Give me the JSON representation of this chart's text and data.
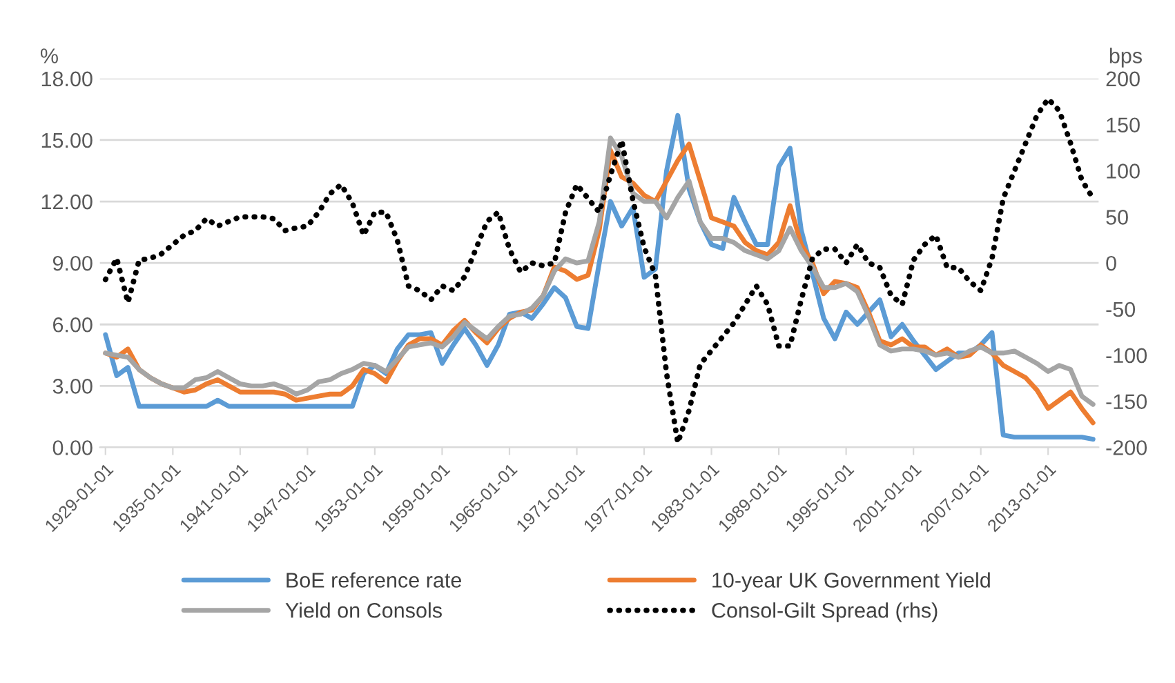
{
  "chart_data": {
    "type": "line",
    "ylabel": "%",
    "y2label": "bps",
    "categories": [
      "1929-01-01",
      null,
      null,
      null,
      null,
      null,
      "1935-01-01",
      null,
      null,
      null,
      null,
      null,
      "1941-01-01",
      null,
      null,
      null,
      null,
      null,
      "1947-01-01",
      null,
      null,
      null,
      null,
      null,
      "1953-01-01",
      null,
      null,
      null,
      null,
      null,
      "1959-01-01",
      null,
      null,
      null,
      null,
      null,
      "1965-01-01",
      null,
      null,
      null,
      null,
      null,
      "1971-01-01",
      null,
      null,
      null,
      null,
      null,
      "1977-01-01",
      null,
      null,
      null,
      null,
      null,
      "1983-01-01",
      null,
      null,
      null,
      null,
      null,
      "1989-01-01",
      null,
      null,
      null,
      null,
      null,
      "1995-01-01",
      null,
      null,
      null,
      null,
      null,
      "2001-01-01",
      null,
      null,
      null,
      null,
      null,
      "2007-01-01",
      null,
      null,
      null,
      null,
      null,
      "2013-01-01",
      null,
      null,
      null,
      null
    ],
    "ylim": [
      0,
      18
    ],
    "yticks": [
      {
        "value": 0,
        "label": "0.00"
      },
      {
        "value": 3,
        "label": "3.00"
      },
      {
        "value": 6,
        "label": "6.00"
      },
      {
        "value": 9,
        "label": "9.00"
      },
      {
        "value": 12,
        "label": "12.00"
      },
      {
        "value": 15,
        "label": "15.00"
      },
      {
        "value": 18,
        "label": "18.00"
      }
    ],
    "y2lim": [
      -200,
      200
    ],
    "y2ticks": [
      -200,
      -150,
      -100,
      -50,
      0,
      50,
      100,
      150,
      200
    ],
    "grid": "y",
    "legend": "bottom",
    "series": [
      {
        "name": "BoE reference rate",
        "color": "#5b9bd5",
        "line_style": "solid",
        "values": [
          5.5,
          3.5,
          3.9,
          2.0,
          2.0,
          2.0,
          2.0,
          2.0,
          2.0,
          2.0,
          2.3,
          2.0,
          2.0,
          2.0,
          2.0,
          2.0,
          2.0,
          2.0,
          2.0,
          2.0,
          2.0,
          2.0,
          2.0,
          3.6,
          4.0,
          3.6,
          4.8,
          5.5,
          5.5,
          5.6,
          4.1,
          5.0,
          5.8,
          5.0,
          4.0,
          5.0,
          6.5,
          6.6,
          6.3,
          7.0,
          7.8,
          7.3,
          5.9,
          5.8,
          9.0,
          12.0,
          10.8,
          11.7,
          8.3,
          8.7,
          13.5,
          16.2,
          12.6,
          11.0,
          9.9,
          9.7,
          12.2,
          11.0,
          9.9,
          9.9,
          13.7,
          14.6,
          10.6,
          8.5,
          6.3,
          5.3,
          6.6,
          6.0,
          6.6,
          7.2,
          5.4,
          6.0,
          5.2,
          4.5,
          3.8,
          4.2,
          4.6,
          4.6,
          5.0,
          5.6,
          0.6,
          0.5,
          0.5,
          0.5,
          0.5,
          0.5,
          0.5,
          0.5,
          0.4
        ]
      },
      {
        "name": "10-year UK Government Yield",
        "color": "#ed7d31",
        "line_style": "solid",
        "values": [
          4.6,
          4.4,
          4.8,
          3.8,
          3.4,
          3.1,
          2.9,
          2.7,
          2.8,
          3.1,
          3.3,
          3.0,
          2.7,
          2.7,
          2.7,
          2.7,
          2.6,
          2.3,
          2.4,
          2.5,
          2.6,
          2.6,
          3.0,
          3.8,
          3.6,
          3.2,
          4.2,
          5.0,
          5.3,
          5.3,
          5.0,
          5.7,
          6.2,
          5.6,
          5.1,
          5.8,
          6.3,
          6.6,
          6.7,
          7.4,
          8.8,
          8.6,
          8.2,
          8.4,
          10.6,
          14.5,
          13.2,
          12.9,
          12.3,
          12.0,
          13.0,
          14.0,
          14.8,
          13.0,
          11.2,
          11.0,
          10.8,
          10.0,
          9.6,
          9.4,
          10.0,
          11.8,
          9.9,
          9.0,
          7.5,
          8.1,
          8.0,
          7.8,
          6.6,
          5.2,
          5.0,
          5.3,
          4.9,
          4.9,
          4.5,
          4.8,
          4.4,
          4.5,
          5.0,
          4.6,
          4.0,
          3.7,
          3.4,
          2.8,
          1.9,
          2.3,
          2.7,
          1.9,
          1.2
        ]
      },
      {
        "name": "Yield on Consols",
        "color": "#a5a5a5",
        "line_style": "solid",
        "values": [
          4.6,
          4.5,
          4.4,
          3.8,
          3.4,
          3.1,
          2.9,
          2.9,
          3.3,
          3.4,
          3.7,
          3.4,
          3.1,
          3.0,
          3.0,
          3.1,
          2.9,
          2.6,
          2.8,
          3.2,
          3.3,
          3.6,
          3.8,
          4.1,
          4.0,
          3.7,
          4.3,
          4.9,
          5.0,
          5.1,
          4.9,
          5.4,
          6.1,
          5.7,
          5.3,
          5.9,
          6.4,
          6.5,
          6.8,
          7.4,
          8.6,
          9.2,
          9.0,
          9.1,
          11.0,
          15.1,
          14.2,
          12.4,
          12.0,
          12.0,
          11.2,
          12.2,
          13.0,
          11.0,
          10.2,
          10.2,
          10.0,
          9.6,
          9.4,
          9.2,
          9.6,
          10.7,
          9.6,
          8.8,
          7.8,
          7.8,
          8.0,
          7.6,
          6.4,
          5.0,
          4.7,
          4.8,
          4.8,
          4.7,
          4.5,
          4.6,
          4.4,
          4.7,
          4.9,
          4.6,
          4.6,
          4.7,
          4.4,
          4.1,
          3.7,
          4.0,
          3.8,
          2.5,
          2.1
        ]
      },
      {
        "name": "Consol-Gilt Spread (rhs)",
        "color": "#000000",
        "line_style": "dotted",
        "axis": "y2",
        "values": [
          -18,
          5,
          -43,
          3,
          5,
          10,
          20,
          30,
          35,
          48,
          40,
          45,
          50,
          50,
          50,
          48,
          35,
          38,
          40,
          55,
          75,
          85,
          65,
          30,
          55,
          55,
          25,
          -25,
          -30,
          -40,
          -25,
          -30,
          -15,
          15,
          45,
          55,
          15,
          -10,
          0,
          -3,
          0,
          55,
          85,
          70,
          55,
          95,
          133,
          68,
          17,
          -13,
          -120,
          -195,
          -160,
          -110,
          -95,
          -80,
          -65,
          -45,
          -25,
          -45,
          -90,
          -90,
          -40,
          5,
          15,
          15,
          0,
          20,
          0,
          -5,
          -35,
          -45,
          3,
          20,
          30,
          -5,
          -5,
          -20,
          -30,
          5,
          70,
          100,
          130,
          160,
          178,
          165,
          130,
          90,
          70
        ]
      }
    ]
  }
}
